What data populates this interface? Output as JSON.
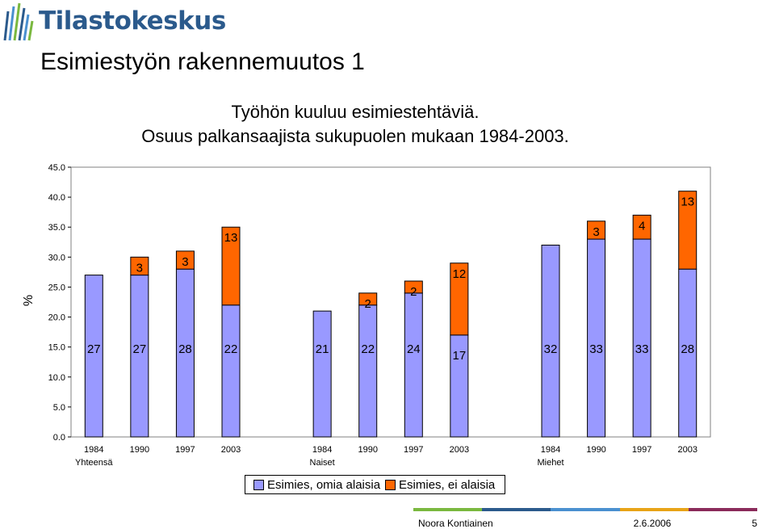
{
  "brand": {
    "name": "Tilastokeskus",
    "colors": [
      "#7ab83f",
      "#2b5a8c",
      "#4a90d0",
      "#e8a317",
      "#8a2a5a"
    ]
  },
  "slide": {
    "title": "Esimiestyön rakennemuutos 1"
  },
  "footer": {
    "author": "Noora Kontiainen",
    "date": "2.6.2006",
    "page": "5"
  },
  "chart_data": {
    "type": "bar",
    "stacked": true,
    "title": [
      "Työhön kuuluu esimiestehtäviä.",
      "Osuus palkansaajista sukupuolen mukaan 1984-2003."
    ],
    "ylabel": "%",
    "ylim": [
      0,
      45
    ],
    "yticks": [
      "0.0",
      "5.0",
      "10.0",
      "15.0",
      "20.0",
      "25.0",
      "30.0",
      "35.0",
      "40.0",
      "45.0"
    ],
    "groups": [
      {
        "label": "Yhteensä",
        "years": [
          "1984",
          "1990",
          "1997",
          "2003"
        ]
      },
      {
        "label": "Naiset",
        "years": [
          "1984",
          "1990",
          "1997",
          "2003"
        ]
      },
      {
        "label": "Miehet",
        "years": [
          "1984",
          "1990",
          "1997",
          "2003"
        ]
      }
    ],
    "series": [
      {
        "name": "Esimies, omia alaisia",
        "color": "#9999ff",
        "values": [
          27,
          27,
          28,
          22,
          21,
          22,
          24,
          17,
          32,
          33,
          33,
          28
        ],
        "labels": [
          "27",
          "27",
          "28",
          "22",
          "21",
          "22",
          "24",
          "17",
          "32",
          "33",
          "33",
          "28"
        ]
      },
      {
        "name": "Esimies, ei alaisia",
        "color": "#ff6600",
        "values": [
          0,
          3,
          3,
          13,
          0,
          2,
          2,
          12,
          0,
          3,
          4,
          13
        ],
        "labels": [
          "",
          "3",
          "3",
          "13",
          "",
          "2",
          "2",
          "12",
          "",
          "3",
          "4",
          "13"
        ]
      }
    ],
    "grid": false,
    "legend": "bottom"
  }
}
